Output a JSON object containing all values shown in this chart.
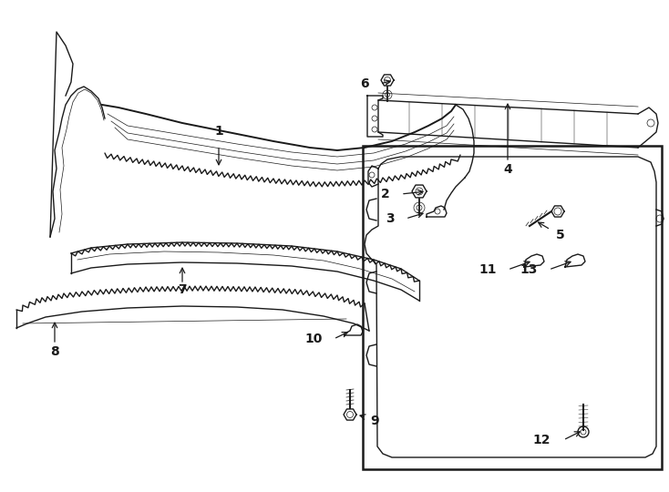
{
  "bg_color": "#ffffff",
  "line_color": "#1a1a1a",
  "figsize": [
    7.34,
    5.4
  ],
  "dpi": 100,
  "label_fontsize": 10,
  "lw_main": 1.0,
  "lw_thin": 0.5,
  "lw_thick": 1.4
}
